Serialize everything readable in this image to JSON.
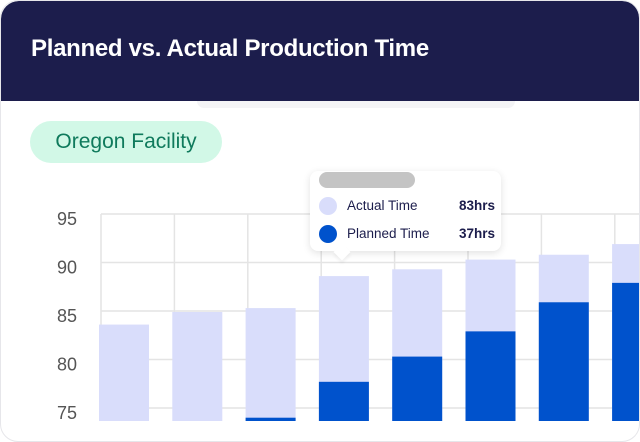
{
  "header": {
    "title": "Planned vs. Actual Production Time"
  },
  "facility_chip": "Oregon Facility",
  "colors": {
    "header_bg": "#1c1d4c",
    "actual": "#d9ddfb",
    "planned": "#0052cc",
    "chip_bg": "#d2f8e7",
    "chip_text": "#0f7a5c"
  },
  "tooltip": {
    "rows": [
      {
        "label": "Actual Time",
        "value": "83hrs",
        "color": "#d9ddfb"
      },
      {
        "label": "Planned Time",
        "value": "37hrs",
        "color": "#0052cc"
      }
    ]
  },
  "chart_data": {
    "type": "bar",
    "stacked": "overlay",
    "grid": true,
    "ylim": [
      73.6,
      97
    ],
    "yticks": [
      "95",
      "90",
      "85",
      "80",
      "75"
    ],
    "series": [
      {
        "name": "Actual Time",
        "values": [
          83.6,
          84.9,
          85.3,
          88.6,
          89.3,
          90.3,
          90.8,
          91.9
        ]
      },
      {
        "name": "Planned Time",
        "values": [
          null,
          null,
          74.0,
          77.7,
          80.3,
          82.9,
          85.9,
          87.9
        ]
      }
    ]
  }
}
